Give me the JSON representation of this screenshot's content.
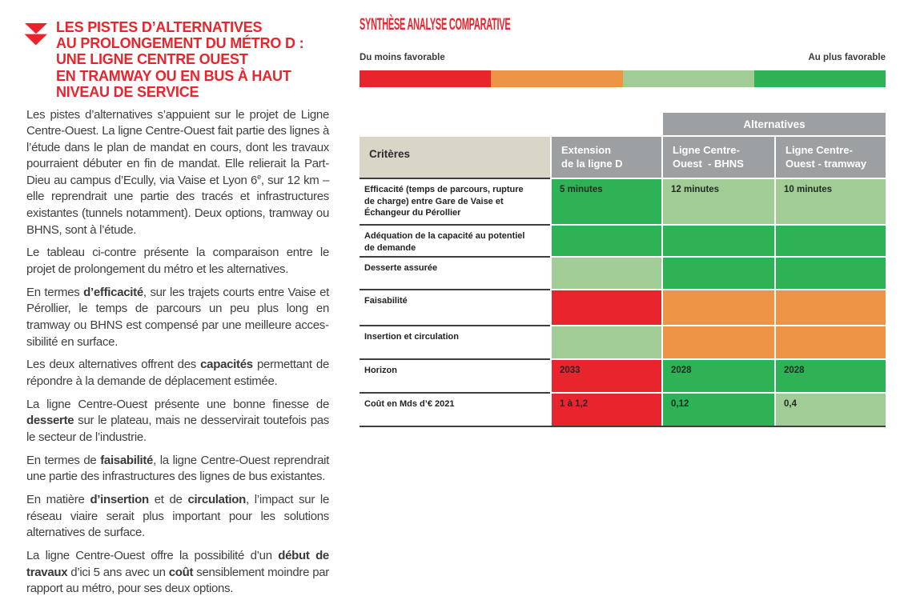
{
  "article": {
    "title_lines": "LES PISTES D’ALTERNATIVES\nAU PROLONGEMENT DU MÉTRO D :\nUNE LIGNE CENTRE OUEST\nEN TRAMWAY OU EN BUS À HAUT\nNIVEAU DE SERVICE",
    "paragraphs": [
      {
        "segments": [
          {
            "t": "Les pistes d’alternatives s’appuient sur le projet de Ligne Centre-Ouest. La ligne Centre-Ouest fait partie des lignes à l’étude dans le plan de mandat en cours, dont les travaux pourraient débuter en fin de mandat. Elle relierait la Part-Dieu au campus d’Ecully, via Vaise et Lyon 6"
          },
          {
            "t": "e",
            "sup": true
          },
          {
            "t": ", sur 12 km – elle reprendrait une partie des tracés et infrastructures existantes (tunnels notamment). Deux options, tramway ou BHNS, sont à l’étude."
          }
        ]
      },
      {
        "segments": [
          {
            "t": "Le tableau ci-contre présente la comparaison entre le projet de prolongement du métro et les alternatives."
          }
        ]
      },
      {
        "segments": [
          {
            "t": "En termes "
          },
          {
            "t": "d’efficacité",
            "b": true
          },
          {
            "t": ", sur les trajets courts entre Vaise et Pérollier, le temps de parcours un peu plus long en tramway ou BHNS est compensé par une meilleure acces­sibilité en surface."
          }
        ]
      },
      {
        "segments": [
          {
            "t": "Les deux alternatives offrent des "
          },
          {
            "t": "capacités",
            "b": true
          },
          {
            "t": " permettant de répondre à la demande de déplacement estimée."
          }
        ]
      },
      {
        "segments": [
          {
            "t": "La ligne Centre-Ouest présente une bonne finesse de "
          },
          {
            "t": "desserte",
            "b": true
          },
          {
            "t": " sur le plateau, mais ne desservirait toutefois pas le secteur de l’industrie."
          }
        ]
      },
      {
        "segments": [
          {
            "t": "En termes de "
          },
          {
            "t": "faisabilité",
            "b": true
          },
          {
            "t": ", la ligne Centre-Ouest reprendrait une partie des infrastructures des lignes de bus existantes."
          }
        ]
      },
      {
        "segments": [
          {
            "t": "En matière "
          },
          {
            "t": "d’insertion",
            "b": true
          },
          {
            "t": " et de "
          },
          {
            "t": "circulation",
            "b": true
          },
          {
            "t": ", l’impact sur le réseau viaire serait plus important pour les solutions alternatives de surface."
          }
        ]
      },
      {
        "segments": [
          {
            "t": "La ligne Centre-Ouest offre la possibilité d’un "
          },
          {
            "t": "début de travaux",
            "b": true
          },
          {
            "t": " d’ici 5 ans avec un "
          },
          {
            "t": "coût",
            "b": true
          },
          {
            "t": " sensiblement moindre par rapport au métro, pour ses deux options."
          }
        ]
      }
    ]
  },
  "analysis": {
    "section_title": "SYNTHÈSE ANALYSE COMPARATIVE",
    "legend": {
      "left_label": "Du moins favorable",
      "right_label": "Au plus favorable",
      "segments": [
        {
          "name": "least-favorable",
          "rating": "red"
        },
        {
          "name": "less-favorable",
          "rating": "orange"
        },
        {
          "name": "favorable",
          "rating": "light-green"
        },
        {
          "name": "most-favorable",
          "rating": "green"
        }
      ]
    },
    "table": {
      "group_header": "Alternatives",
      "criteria_header": "Critères",
      "column_headers": [
        "Extension\nde la ligne D",
        "Ligne Centre-\nOuest  - BHNS",
        "Ligne Centre-\nOuest - tramway"
      ],
      "rows": [
        {
          "criterion": "Efficacité (temps de parcours, rupture de charge) entre Gare de Vaise et Échangeur du Pérollier",
          "cells": [
            {
              "rating": "green",
              "label": "5 minutes"
            },
            {
              "rating": "light-green",
              "label": "12 minutes"
            },
            {
              "rating": "light-green",
              "label": "10 minutes"
            }
          ]
        },
        {
          "criterion": "Adéquation de la capacité au potentiel de demande",
          "cells": [
            {
              "rating": "green",
              "label": ""
            },
            {
              "rating": "green",
              "label": ""
            },
            {
              "rating": "green",
              "label": ""
            }
          ]
        },
        {
          "criterion": "Desserte assurée",
          "cells": [
            {
              "rating": "light-green",
              "label": ""
            },
            {
              "rating": "green",
              "label": ""
            },
            {
              "rating": "green",
              "label": ""
            }
          ]
        },
        {
          "criterion": "Faisabilité",
          "cells": [
            {
              "rating": "red",
              "label": ""
            },
            {
              "rating": "orange",
              "label": ""
            },
            {
              "rating": "orange",
              "label": ""
            }
          ]
        },
        {
          "criterion": "Insertion et circulation",
          "cells": [
            {
              "rating": "light-green",
              "label": ""
            },
            {
              "rating": "orange",
              "label": ""
            },
            {
              "rating": "orange",
              "label": ""
            }
          ]
        },
        {
          "criterion": "Horizon",
          "cells": [
            {
              "rating": "red",
              "label": "2033"
            },
            {
              "rating": "green",
              "label": "2028"
            },
            {
              "rating": "green",
              "label": "2028"
            }
          ]
        },
        {
          "criterion": "Coût en Mds d’€ 2021",
          "cells": [
            {
              "rating": "red",
              "label": "1 à 1,2"
            },
            {
              "rating": "green",
              "label": "0,12"
            },
            {
              "rating": "light-green",
              "label": "0,4"
            }
          ]
        }
      ]
    }
  },
  "palette": {
    "red": "#e8252c",
    "orange": "#ee9447",
    "light_green": "#a1cc96",
    "green": "#2db356",
    "header_gray": "#9da0a3",
    "criteria_beige": "#d9d5c7",
    "brand_red": "#e8242c"
  }
}
